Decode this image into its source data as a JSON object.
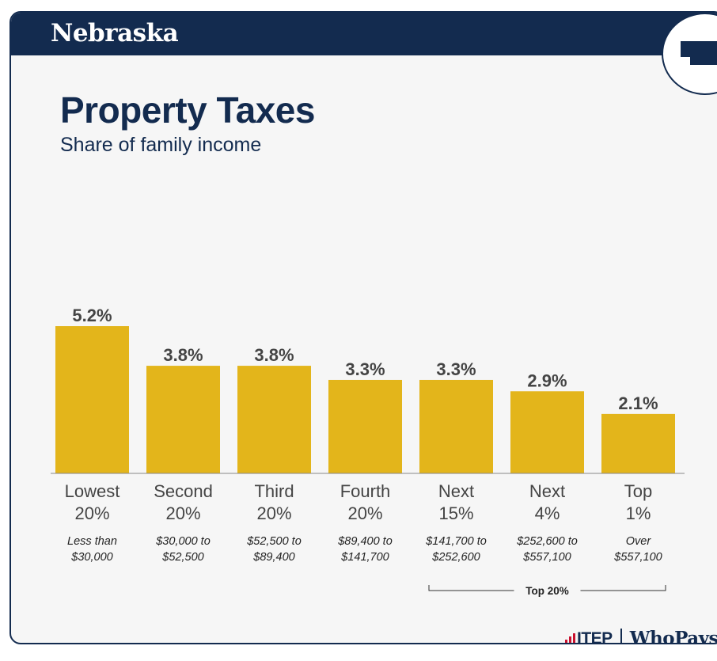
{
  "header": {
    "state": "Nebraska"
  },
  "colors": {
    "navy": "#132b4f",
    "bar": "#e3b51b",
    "background": "#f6f6f6",
    "text": "#444444"
  },
  "chart_data": {
    "type": "bar",
    "title": "Property Taxes",
    "subtitle": "Share of family income",
    "categories": [
      [
        "Lowest",
        "20%"
      ],
      [
        "Second",
        "20%"
      ],
      [
        "Third",
        "20%"
      ],
      [
        "Fourth",
        "20%"
      ],
      [
        "Next",
        "15%"
      ],
      [
        "Next",
        "4%"
      ],
      [
        "Top",
        "1%"
      ]
    ],
    "income_ranges": [
      [
        "Less than",
        "$30,000"
      ],
      [
        "$30,000 to",
        "$52,500"
      ],
      [
        "$52,500 to",
        "$89,400"
      ],
      [
        "$89,400 to",
        "$141,700"
      ],
      [
        "$141,700 to",
        "$252,600"
      ],
      [
        "$252,600 to",
        "$557,100"
      ],
      [
        "Over",
        "$557,100"
      ]
    ],
    "values": [
      5.2,
      3.8,
      3.8,
      3.3,
      3.3,
      2.9,
      2.1
    ],
    "value_labels": [
      "5.2%",
      "3.8%",
      "3.8%",
      "3.3%",
      "3.3%",
      "2.9%",
      "2.1%"
    ],
    "bracket": {
      "label": "Top 20%",
      "from": 4,
      "to": 6
    },
    "ylim": [
      0,
      5.2
    ],
    "grid": false,
    "legend": "none"
  },
  "footer": {
    "itep_label": "ITEP",
    "whopays_label": "WhoPays?"
  }
}
